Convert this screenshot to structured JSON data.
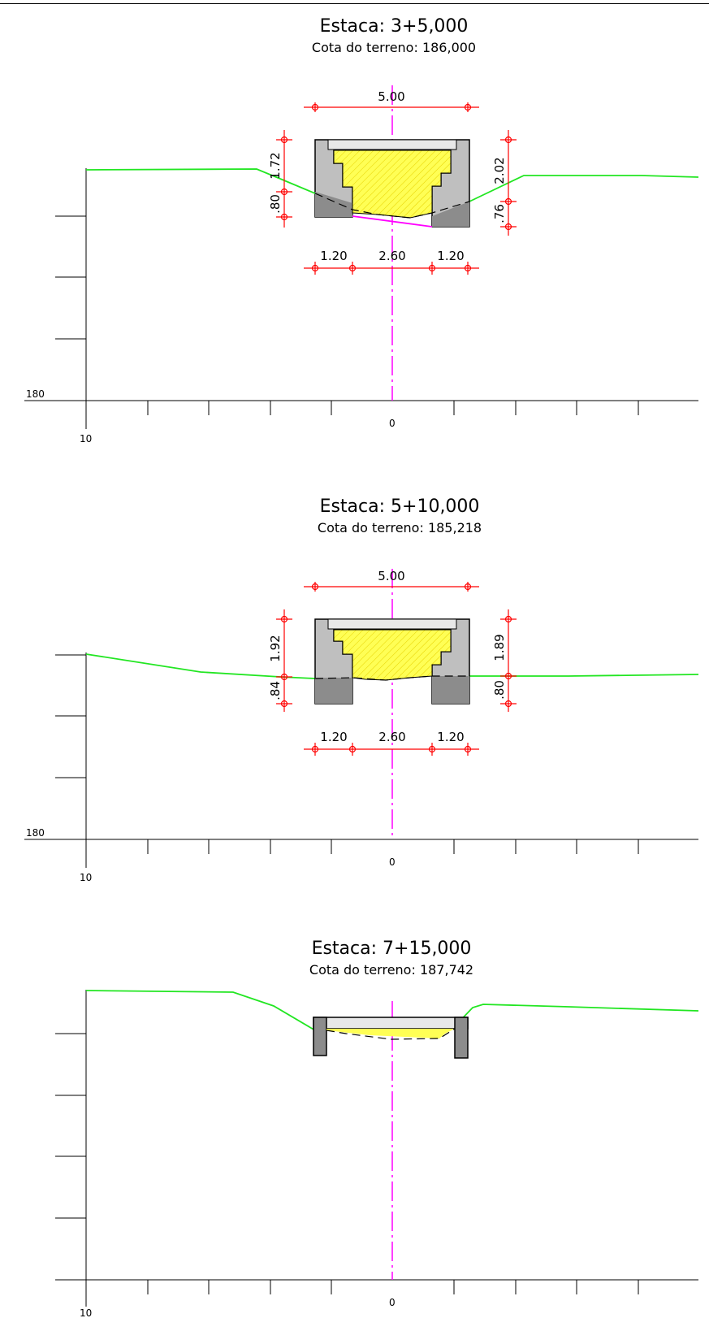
{
  "sections": [
    {
      "title": "Estaca: 3+5,000",
      "subtitle": "Cota do terreno: 186,000",
      "axis": {
        "elevation_label": "180",
        "left_label": "10",
        "center_label": "0"
      },
      "dims": {
        "width": "5.00",
        "left_top": "1.72",
        "left_bottom": ".80",
        "right_top": "2.02",
        "right_bottom": ".76",
        "bottom_left": "1.20",
        "bottom_mid": "2.60",
        "bottom_right": "1.20"
      }
    },
    {
      "title": "Estaca: 5+10,000",
      "subtitle": "Cota do terreno: 185,218",
      "axis": {
        "elevation_label": "180",
        "left_label": "10",
        "center_label": "0"
      },
      "dims": {
        "width": "5.00",
        "left_top": "1.92",
        "left_bottom": ".84",
        "right_top": "1.89",
        "right_bottom": ".80",
        "bottom_left": "1.20",
        "bottom_mid": "2.60",
        "bottom_right": "1.20"
      }
    },
    {
      "title": "Estaca: 7+15,000",
      "subtitle": "Cota do terreno: 187,742",
      "axis": {
        "left_label": "10",
        "center_label": "0"
      }
    }
  ],
  "colors": {
    "terrain": "#22e622",
    "dimension": "#ff0000",
    "centerline": "#ff00ff",
    "fill": "#ffff55",
    "structure": "#bfbfbf",
    "structure_dark": "#8c8c8c"
  }
}
